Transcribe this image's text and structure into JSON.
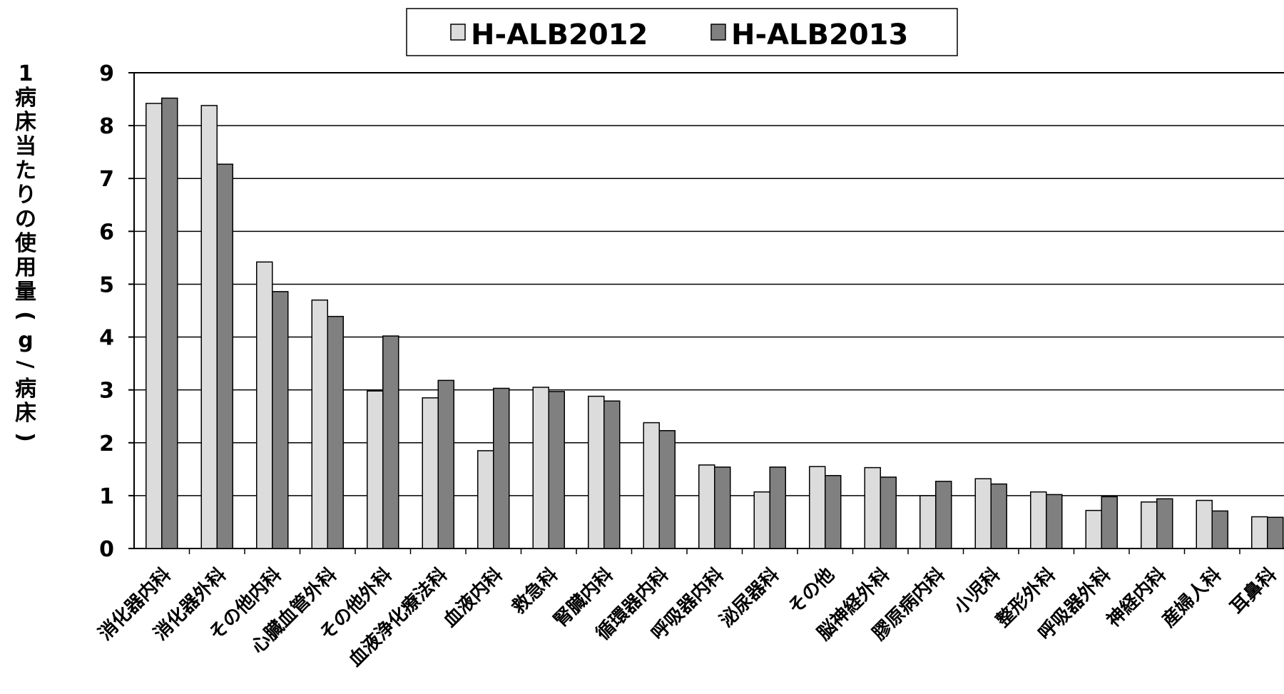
{
  "chart_data": {
    "type": "bar",
    "title": "",
    "xlabel": "",
    "ylabel": "1病床当たりの使用量(g/病床)",
    "ylim": [
      0,
      9
    ],
    "yticks": [
      0,
      1,
      2,
      3,
      4,
      5,
      6,
      7,
      8,
      9
    ],
    "grid": true,
    "legend_position": "top",
    "categories": [
      "消化器内科",
      "消化器外科",
      "その他内科",
      "心臓血管外科",
      "その他外科",
      "血液浄化療法科",
      "血液内科",
      "救急科",
      "腎臓内科",
      "循環器内科",
      "呼吸器内科",
      "泌尿器科",
      "その他",
      "脳神経外科",
      "膠原病内科",
      "小児科",
      "整形外科",
      "呼吸器外科",
      "神経内科",
      "産婦人科",
      "耳鼻科"
    ],
    "series": [
      {
        "name": "H-ALB2012",
        "color": "#dcdcdc",
        "values": [
          8.42,
          8.38,
          5.42,
          4.7,
          2.98,
          2.85,
          1.85,
          3.05,
          2.88,
          2.38,
          1.58,
          1.07,
          1.55,
          1.53,
          1.0,
          1.32,
          1.07,
          0.72,
          0.88,
          0.91,
          0.6
        ]
      },
      {
        "name": "H-ALB2013",
        "color": "#808080",
        "values": [
          8.52,
          7.27,
          4.86,
          4.39,
          4.02,
          3.18,
          3.03,
          2.97,
          2.79,
          2.23,
          1.54,
          1.54,
          1.38,
          1.35,
          1.27,
          1.22,
          1.02,
          0.98,
          0.94,
          0.71,
          0.59
        ]
      }
    ]
  }
}
